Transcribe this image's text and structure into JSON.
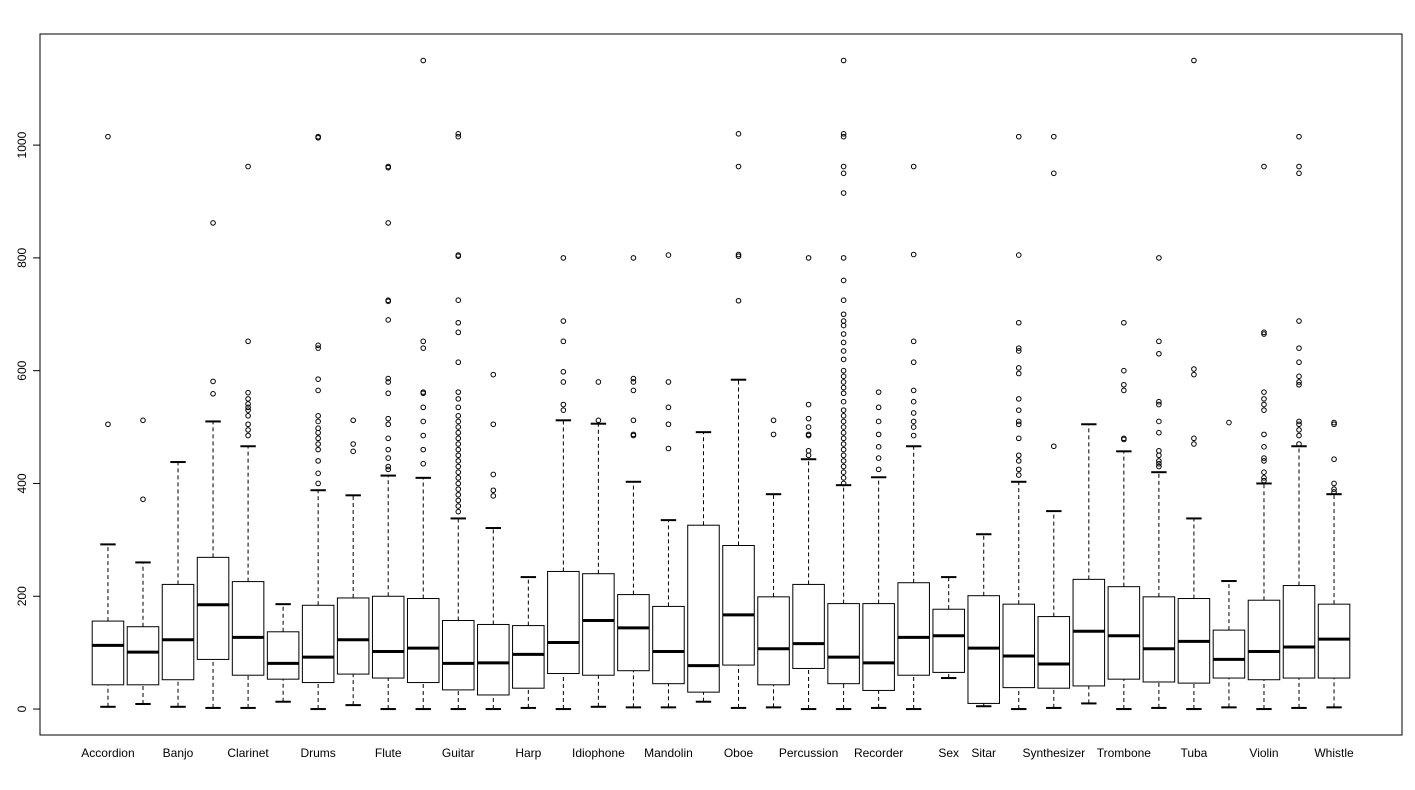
{
  "chart_data": {
    "type": "boxplot",
    "categories": [
      "Accordion",
      null,
      "Banjo",
      null,
      "Clarinet",
      null,
      "Drums",
      null,
      "Flute",
      null,
      "Guitar",
      null,
      "Harp",
      null,
      "Idiophone",
      null,
      "Mandolin",
      null,
      "Oboe",
      null,
      "Percussion",
      null,
      "Recorder",
      null,
      "Sex",
      "Sitar",
      null,
      "Synthesizer",
      null,
      "Trombone",
      null,
      "Tuba",
      null,
      "Violin",
      null,
      "Whistle"
    ],
    "boxes": [
      {
        "low": 4,
        "q1": 43,
        "median": 113,
        "q3": 156,
        "high": 292,
        "outliers": [
          1015,
          505
        ]
      },
      {
        "low": 9,
        "q1": 43,
        "median": 101,
        "q3": 146,
        "high": 260,
        "outliers": [
          512,
          372
        ]
      },
      {
        "low": 4,
        "q1": 52,
        "median": 123,
        "q3": 221,
        "high": 438,
        "outliers": []
      },
      {
        "low": 2,
        "q1": 88,
        "median": 185,
        "q3": 269,
        "high": 510,
        "outliers": [
          862,
          581,
          559
        ]
      },
      {
        "low": 2,
        "q1": 60,
        "median": 127,
        "q3": 226,
        "high": 466,
        "outliers": [
          962,
          652,
          561,
          550,
          541,
          535,
          530,
          520,
          505,
          495,
          485
        ]
      },
      {
        "low": 13,
        "q1": 53,
        "median": 81,
        "q3": 137,
        "high": 186,
        "outliers": []
      },
      {
        "low": 0,
        "q1": 47,
        "median": 92,
        "q3": 184,
        "high": 388,
        "outliers": [
          1015,
          1013,
          645,
          640,
          585,
          565,
          520,
          510,
          498,
          490,
          480,
          470,
          460,
          440,
          418,
          400
        ]
      },
      {
        "low": 7,
        "q1": 62,
        "median": 123,
        "q3": 197,
        "high": 379,
        "outliers": [
          512,
          470,
          457
        ]
      },
      {
        "low": 0,
        "q1": 55,
        "median": 102,
        "q3": 200,
        "high": 414,
        "outliers": [
          962,
          960,
          862,
          725,
          723,
          690,
          586,
          580,
          560,
          515,
          505,
          480,
          460,
          445,
          430,
          425
        ]
      },
      {
        "low": 0,
        "q1": 47,
        "median": 108,
        "q3": 196,
        "high": 410,
        "outliers": [
          1150,
          652,
          640,
          562,
          560,
          535,
          510,
          485,
          460,
          435
        ]
      },
      {
        "low": 0,
        "q1": 34,
        "median": 81,
        "q3": 157,
        "high": 338,
        "outliers": [
          1020,
          1015,
          805,
          803,
          725,
          685,
          668,
          615,
          562,
          550,
          535,
          520,
          510,
          500,
          490,
          480,
          470,
          460,
          450,
          440,
          430,
          420,
          410,
          400,
          390,
          380,
          370,
          360,
          350
        ]
      },
      {
        "low": 0,
        "q1": 25,
        "median": 82,
        "q3": 150,
        "high": 321,
        "outliers": [
          593,
          505,
          416,
          388,
          378
        ]
      },
      {
        "low": 2,
        "q1": 37,
        "median": 97,
        "q3": 148,
        "high": 234,
        "outliers": []
      },
      {
        "low": 0,
        "q1": 63,
        "median": 118,
        "q3": 244,
        "high": 512,
        "outliers": [
          800,
          688,
          652,
          598,
          580,
          540,
          530
        ]
      },
      {
        "low": 4,
        "q1": 60,
        "median": 157,
        "q3": 240,
        "high": 506,
        "outliers": [
          580,
          512
        ]
      },
      {
        "low": 3,
        "q1": 68,
        "median": 144,
        "q3": 203,
        "high": 403,
        "outliers": [
          800,
          586,
          580,
          565,
          512,
          487,
          485
        ]
      },
      {
        "low": 3,
        "q1": 45,
        "median": 102,
        "q3": 182,
        "high": 335,
        "outliers": [
          805,
          580,
          535,
          505,
          462
        ]
      },
      {
        "low": 13,
        "q1": 30,
        "median": 77,
        "q3": 326,
        "high": 491,
        "outliers": []
      },
      {
        "low": 2,
        "q1": 78,
        "median": 167,
        "q3": 290,
        "high": 584,
        "outliers": [
          1020,
          962,
          806,
          803,
          724
        ]
      },
      {
        "low": 3,
        "q1": 43,
        "median": 107,
        "q3": 199,
        "high": 381,
        "outliers": [
          512,
          487
        ]
      },
      {
        "low": 0,
        "q1": 72,
        "median": 116,
        "q3": 221,
        "high": 443,
        "outliers": [
          800,
          540,
          515,
          500,
          487,
          485,
          458,
          450
        ]
      },
      {
        "low": 0,
        "q1": 45,
        "median": 92,
        "q3": 187,
        "high": 397,
        "outliers": [
          1150,
          1020,
          1015,
          962,
          950,
          915,
          800,
          760,
          725,
          700,
          688,
          680,
          665,
          650,
          635,
          620,
          600,
          590,
          580,
          570,
          560,
          545,
          530,
          520,
          510,
          500,
          490,
          480,
          470,
          460,
          450,
          440,
          430,
          420,
          410,
          400
        ]
      },
      {
        "low": 2,
        "q1": 33,
        "median": 82,
        "q3": 187,
        "high": 411,
        "outliers": [
          562,
          535,
          510,
          487,
          465,
          445,
          425
        ]
      },
      {
        "low": 0,
        "q1": 60,
        "median": 127,
        "q3": 224,
        "high": 466,
        "outliers": [
          962,
          806,
          652,
          615,
          565,
          545,
          525,
          510,
          500,
          485
        ]
      },
      {
        "low": 55,
        "q1": 65,
        "median": 130,
        "q3": 177,
        "high": 234,
        "outliers": []
      },
      {
        "low": 5,
        "q1": 10,
        "median": 108,
        "q3": 201,
        "high": 310,
        "outliers": []
      },
      {
        "low": 0,
        "q1": 38,
        "median": 94,
        "q3": 186,
        "high": 403,
        "outliers": [
          1015,
          805,
          685,
          640,
          635,
          605,
          595,
          550,
          530,
          510,
          505,
          480,
          450,
          440,
          425,
          415
        ]
      },
      {
        "low": 2,
        "q1": 37,
        "median": 80,
        "q3": 164,
        "high": 351,
        "outliers": [
          1015,
          950,
          466
        ]
      },
      {
        "low": 10,
        "q1": 41,
        "median": 138,
        "q3": 230,
        "high": 505,
        "outliers": []
      },
      {
        "low": 0,
        "q1": 53,
        "median": 130,
        "q3": 217,
        "high": 457,
        "outliers": [
          685,
          600,
          575,
          565,
          480,
          478
        ]
      },
      {
        "low": 2,
        "q1": 48,
        "median": 107,
        "q3": 199,
        "high": 420,
        "outliers": [
          800,
          652,
          630,
          545,
          540,
          510,
          490,
          458,
          450,
          440,
          435,
          430
        ]
      },
      {
        "low": 0,
        "q1": 46,
        "median": 120,
        "q3": 196,
        "high": 338,
        "outliers": [
          1150,
          603,
          593,
          480,
          470
        ]
      },
      {
        "low": 3,
        "q1": 55,
        "median": 88,
        "q3": 140,
        "high": 227,
        "outliers": [
          508
        ]
      },
      {
        "low": 0,
        "q1": 52,
        "median": 102,
        "q3": 193,
        "high": 400,
        "outliers": [
          962,
          668,
          665,
          562,
          550,
          540,
          530,
          487,
          465,
          445,
          440,
          420,
          410,
          405
        ]
      },
      {
        "low": 2,
        "q1": 55,
        "median": 110,
        "q3": 219,
        "high": 466,
        "outliers": [
          1015,
          962,
          950,
          688,
          640,
          615,
          590,
          580,
          575,
          510,
          505,
          495,
          485,
          470
        ]
      },
      {
        "low": 3,
        "q1": 55,
        "median": 124,
        "q3": 186,
        "high": 381,
        "outliers": [
          508,
          505,
          443,
          400,
          390,
          385
        ]
      }
    ],
    "ylim": [
      -46,
      1197
    ],
    "yticks": [
      0,
      200,
      400,
      600,
      800,
      1000
    ],
    "color": "#000000"
  }
}
